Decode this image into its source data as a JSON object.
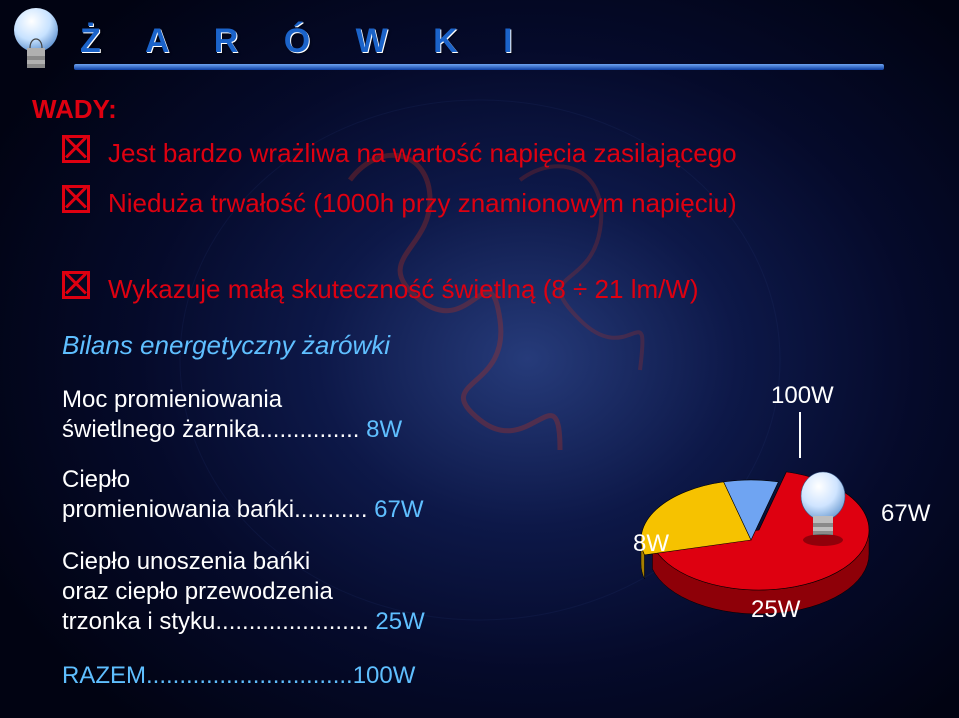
{
  "title": "Ż A R Ó W K I",
  "subhead_wady": "WADY:",
  "bullets": [
    "Jest bardzo wrażliwa na wartość napięcia zasilającego",
    "Nieduża trwałość (1000h przy znamionowym napięciu)",
    "Wykazuje małą skuteczność świetlną (8 ÷ 21 lm/W)"
  ],
  "bilans_heading": "Bilans energetyczny żarówki",
  "balance_lines": {
    "l1a": "Moc promieniowania",
    "l1b_text": "świetlnego żarnika...............",
    "l1b_val": "  8W",
    "l2a": "Ciepło",
    "l2b_text": "promieniowania bańki...........",
    "l2b_val": " 67W",
    "l3a": "Ciepło unoszenia bańki",
    "l3b": "oraz ciepło przewodzenia",
    "l3c_text": "trzonka i styku.......................",
    "l3c_val": " 25W",
    "razem": "RAZEM...............................100W"
  },
  "pie": {
    "type": "pie",
    "total_label": "100W",
    "slices": [
      {
        "label": "67W",
        "value": 67,
        "color": "#de0010",
        "side": "#8e0008"
      },
      {
        "label": "25W",
        "value": 25,
        "color": "#f6c200",
        "side": "#a67e00"
      },
      {
        "label": "8W",
        "value": 8,
        "color": "#6fa4f2",
        "side": "#2a55a3"
      }
    ],
    "bulb_on_slice": 0,
    "background": "transparent"
  },
  "colors": {
    "title": "#1b63c9",
    "red": "#de0010",
    "cyan": "#5fbfff",
    "white": "#ffffff"
  }
}
